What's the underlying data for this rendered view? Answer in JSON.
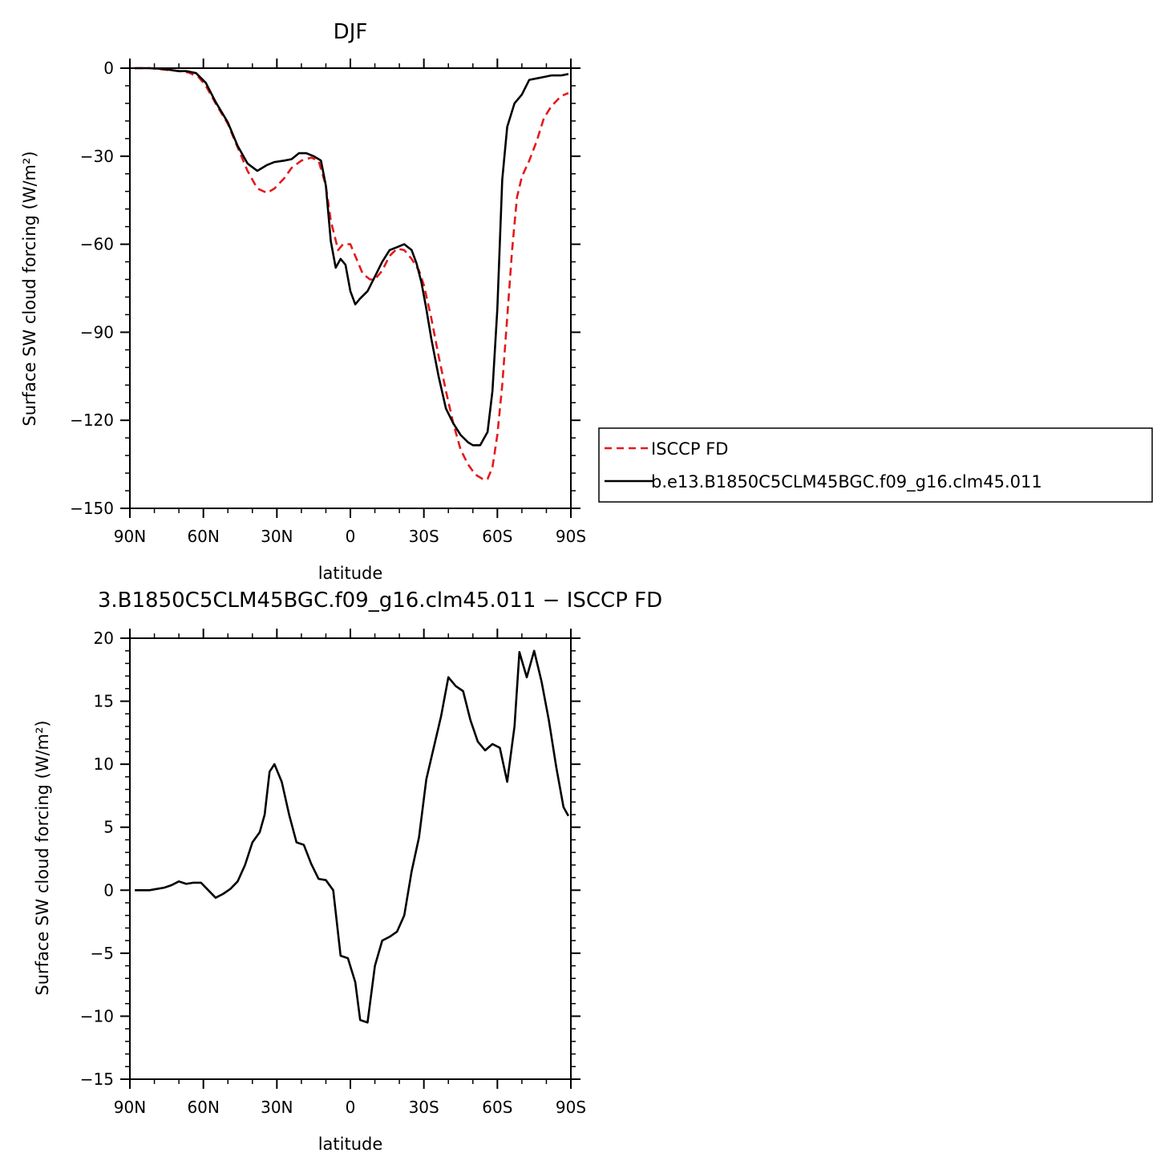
{
  "chart_data": [
    {
      "type": "line",
      "title": "DJF",
      "xlabel": "latitude",
      "ylabel": "Surface SW cloud forcing (W/m²)",
      "xlim": [
        -90,
        90
      ],
      "ylim": [
        -150,
        0
      ],
      "x_ticks": [
        -90,
        -60,
        -30,
        0,
        30,
        60,
        90
      ],
      "x_tick_labels": [
        "90N",
        "60N",
        "30N",
        "0",
        "30S",
        "60S",
        "90S"
      ],
      "y_ticks": [
        0,
        -30,
        -60,
        -90,
        -120,
        -150
      ],
      "y_tick_labels": [
        "0",
        "−30",
        "−60",
        "−90",
        "−120",
        "−150"
      ],
      "legend": {
        "placement": "right",
        "entries": [
          "ISCCP FD",
          "b.e13.B1850C5CLM45BGC.f09_g16.clm45.011"
        ]
      },
      "series": [
        {
          "name": "ISCCP FD",
          "color": "#e31a1c",
          "dash": "dashed",
          "x": [
            -88,
            -82,
            -76,
            -70,
            -66,
            -62,
            -59,
            -55,
            -50,
            -46,
            -42,
            -38,
            -34,
            -31,
            -27,
            -24,
            -20,
            -16,
            -13,
            -10,
            -8,
            -5,
            -3,
            0,
            2,
            5,
            8,
            10,
            13,
            16,
            19,
            22,
            25,
            28,
            30,
            33,
            36,
            39,
            42,
            45,
            48,
            51,
            54,
            56,
            58,
            60,
            62,
            64,
            66,
            68,
            70,
            73,
            76,
            79,
            82,
            86,
            89
          ],
          "y": [
            0,
            0,
            -0.5,
            -1,
            -1.5,
            -3,
            -6,
            -12,
            -19,
            -27,
            -35,
            -41,
            -42.5,
            -41,
            -37.5,
            -34,
            -31.5,
            -30.5,
            -31.5,
            -40,
            -52,
            -62,
            -60,
            -60,
            -64,
            -70,
            -72,
            -72,
            -69,
            -64,
            -61.5,
            -62,
            -65,
            -69,
            -74,
            -85,
            -98,
            -110,
            -121,
            -130,
            -135,
            -138.5,
            -140,
            -140,
            -136,
            -125,
            -108,
            -85,
            -62,
            -44,
            -37,
            -31.5,
            -25,
            -17,
            -13,
            -9.5,
            -8.5
          ]
        },
        {
          "name": "b.e13.B1850C5CLM45BGC.f09_g16.clm45.011",
          "color": "#000000",
          "dash": "solid",
          "x": [
            -88,
            -82,
            -76,
            -70,
            -67,
            -63,
            -59,
            -55,
            -50,
            -46,
            -42,
            -38,
            -34,
            -31,
            -27,
            -24,
            -21,
            -18,
            -15,
            -12,
            -10,
            -8,
            -6,
            -4,
            -2,
            0,
            2,
            4,
            7,
            10,
            13,
            16,
            19,
            22,
            25,
            27,
            29,
            31,
            33,
            36,
            39,
            42,
            45,
            48,
            50,
            53,
            56,
            58,
            60,
            62,
            64,
            67,
            70,
            73,
            76,
            79,
            82,
            86,
            89
          ],
          "y": [
            0,
            0,
            -0.3,
            -1,
            -1,
            -1.7,
            -5,
            -11.5,
            -18.5,
            -26.5,
            -32.5,
            -35,
            -33,
            -32,
            -31.5,
            -31,
            -29,
            -29,
            -30,
            -31.5,
            -40,
            -59,
            -68,
            -65,
            -67,
            -76,
            -80.5,
            -78.5,
            -76,
            -71,
            -66,
            -62,
            -61,
            -60,
            -62,
            -66.5,
            -73,
            -82,
            -92,
            -105,
            -116,
            -121,
            -125,
            -127.5,
            -128.5,
            -128.5,
            -124,
            -110,
            -82,
            -38,
            -20,
            -12,
            -9,
            -4,
            -3.5,
            -3,
            -2.5,
            -2.5,
            -2
          ]
        }
      ]
    },
    {
      "type": "line",
      "title": "3.B1850C5CLM45BGC.f09_g16.clm45.011 − ISCCP FD",
      "xlabel": "latitude",
      "ylabel": "Surface SW cloud forcing (W/m²)",
      "xlim": [
        -90,
        90
      ],
      "ylim": [
        -15,
        20
      ],
      "x_ticks": [
        -90,
        -60,
        -30,
        0,
        30,
        60,
        90
      ],
      "x_tick_labels": [
        "90N",
        "60N",
        "30N",
        "0",
        "30S",
        "60S",
        "90S"
      ],
      "y_ticks": [
        20,
        15,
        10,
        5,
        0,
        -5,
        -10,
        -15
      ],
      "y_tick_labels": [
        "20",
        "15",
        "10",
        "5",
        "0",
        "−5",
        "−10",
        "−15"
      ],
      "series": [
        {
          "color": "#000000",
          "dash": "solid",
          "x": [
            -88,
            -82,
            -79,
            -76,
            -73,
            -70,
            -67,
            -64,
            -61,
            -58,
            -55,
            -52,
            -49,
            -46,
            -43,
            -40,
            -37,
            -35,
            -33,
            -31,
            -28,
            -25,
            -22,
            -19,
            -16,
            -13,
            -10,
            -7,
            -4,
            -1,
            2,
            4,
            7,
            10,
            13,
            16,
            19,
            22,
            25,
            28,
            31,
            34,
            37,
            40,
            43,
            46,
            49,
            52,
            55,
            58,
            61,
            64,
            67,
            69,
            72,
            75,
            78,
            81,
            84,
            87,
            89
          ],
          "y": [
            0,
            0,
            0.1,
            0.2,
            0.4,
            0.7,
            0.5,
            0.6,
            0.6,
            0,
            -0.6,
            -0.3,
            0.1,
            0.7,
            2,
            3.8,
            4.6,
            6,
            9.4,
            10,
            8.6,
            6,
            3.8,
            3.6,
            2.1,
            0.9,
            0.8,
            0,
            -5.2,
            -5.4,
            -7.3,
            -10.3,
            -10.5,
            -6,
            -4,
            -3.7,
            -3.3,
            -2,
            1.5,
            4.2,
            8.8,
            11.3,
            13.8,
            16.9,
            16.2,
            15.8,
            13.5,
            11.8,
            11.1,
            11.6,
            11.3,
            8.6,
            13,
            18.9,
            16.9,
            19,
            16.6,
            13.5,
            9.8,
            6.6,
            5.9
          ]
        }
      ]
    }
  ]
}
